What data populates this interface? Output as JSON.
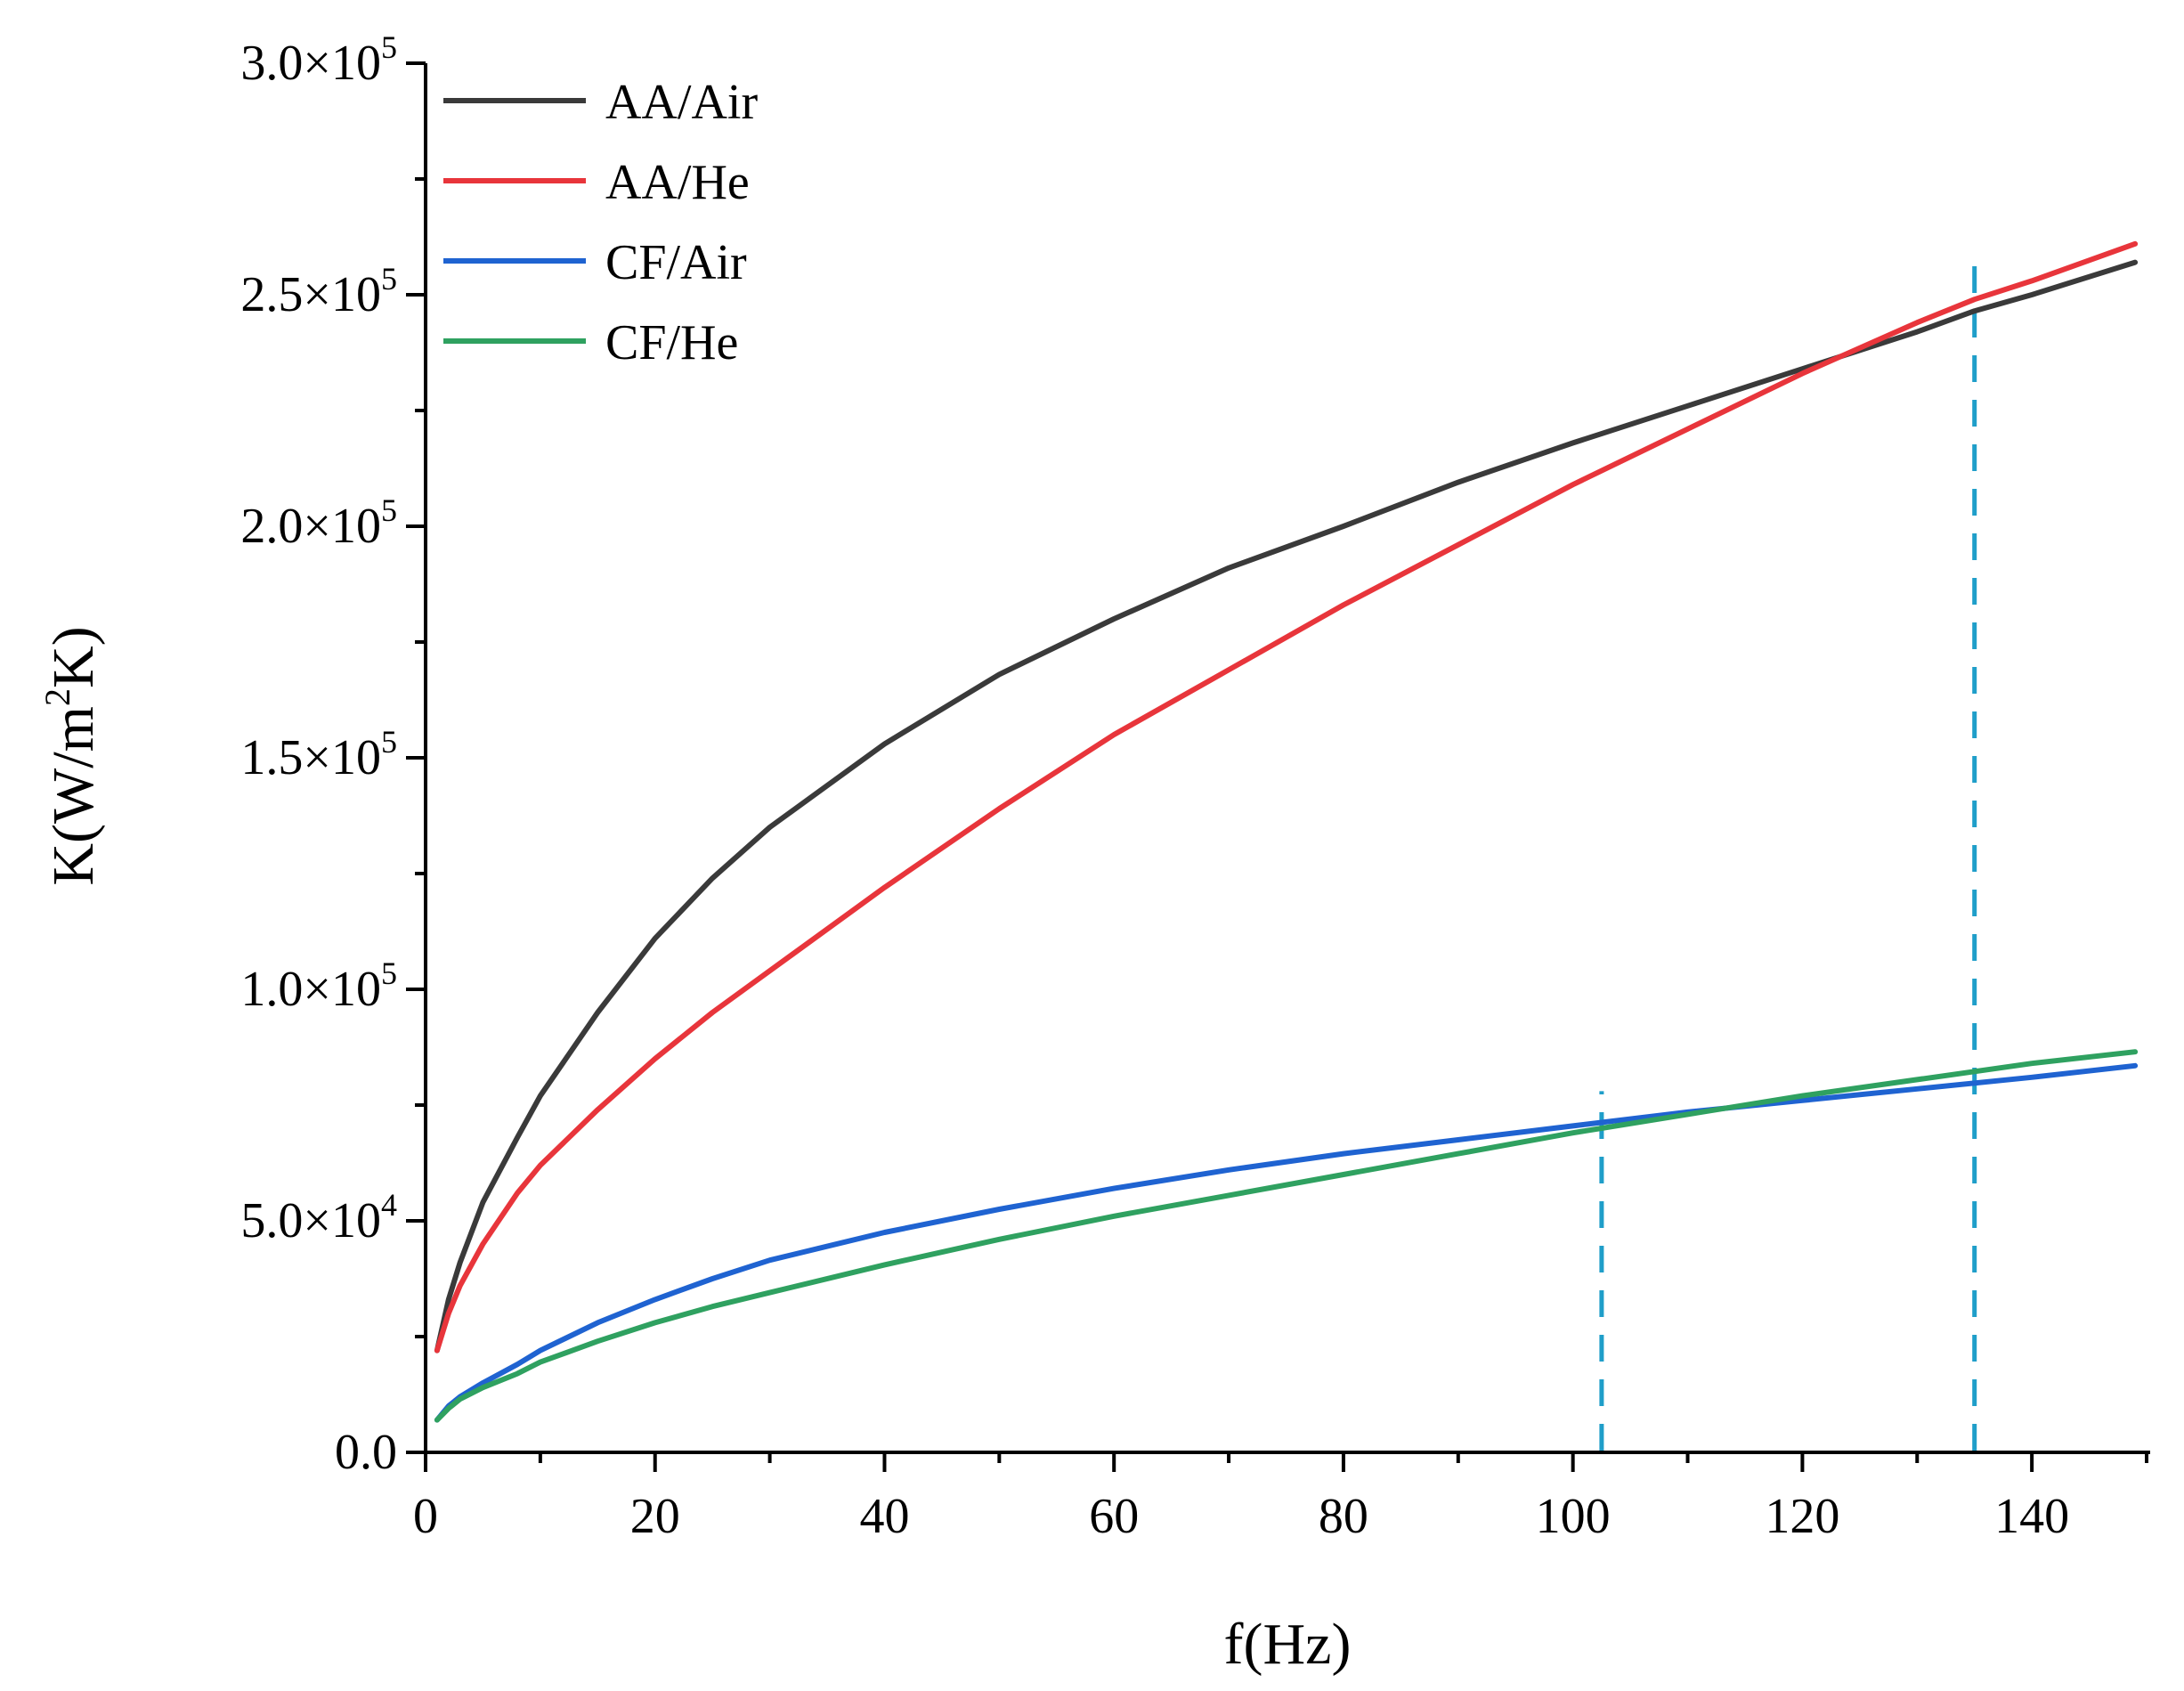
{
  "chart_data": {
    "type": "line",
    "xlabel": "f(Hz)",
    "ylabel": {
      "prefix": "K(W/m",
      "sup": "2",
      "suffix": "K)"
    },
    "xlim": [
      0,
      150
    ],
    "ylim": [
      0,
      300000
    ],
    "x_ticks": [
      0,
      20,
      40,
      60,
      80,
      100,
      120,
      140
    ],
    "x_tick_labels": [
      "0",
      "20",
      "40",
      "60",
      "80",
      "100",
      "120",
      "140"
    ],
    "y_ticks": [
      0,
      50000,
      100000,
      150000,
      200000,
      250000,
      300000
    ],
    "y_tick_labels": [
      {
        "mantissa": "0.0",
        "exp": ""
      },
      {
        "mantissa": "5.0×10",
        "exp": "4"
      },
      {
        "mantissa": "1.0×10",
        "exp": "5"
      },
      {
        "mantissa": "1.5×10",
        "exp": "5"
      },
      {
        "mantissa": "2.0×10",
        "exp": "5"
      },
      {
        "mantissa": "2.5×10",
        "exp": "5"
      },
      {
        "mantissa": "3.0×10",
        "exp": "5"
      }
    ],
    "legend_position": "top-left",
    "series": [
      {
        "name": "AA/Air",
        "color": "#3a3a3a",
        "x": [
          1,
          2,
          3,
          5,
          8,
          10,
          15,
          20,
          25,
          30,
          40,
          50,
          60,
          70,
          80,
          90,
          100,
          110,
          120,
          130,
          135,
          140,
          149
        ],
        "values": [
          22000,
          33000,
          41000,
          54000,
          68000,
          77000,
          95000,
          111000,
          124000,
          135000,
          153000,
          168000,
          180000,
          191000,
          200000,
          209500,
          218000,
          226000,
          234000,
          242000,
          246500,
          250000,
          257000
        ]
      },
      {
        "name": "AA/He",
        "color": "#e8353b",
        "x": [
          1,
          2,
          3,
          5,
          8,
          10,
          15,
          20,
          25,
          30,
          40,
          50,
          60,
          70,
          80,
          90,
          100,
          110,
          120,
          130,
          135,
          140,
          149
        ],
        "values": [
          22000,
          30000,
          36000,
          45000,
          56000,
          62000,
          74000,
          85000,
          95000,
          104000,
          122000,
          139000,
          155000,
          169000,
          183000,
          196000,
          209000,
          221000,
          233000,
          244000,
          249000,
          253000,
          261000
        ]
      },
      {
        "name": "CF/Air",
        "color": "#1f63d1",
        "x": [
          1,
          2,
          3,
          5,
          8,
          10,
          15,
          20,
          25,
          30,
          40,
          50,
          60,
          70,
          80,
          90,
          100,
          110,
          120,
          130,
          140,
          149
        ],
        "values": [
          7000,
          10000,
          12000,
          15000,
          19000,
          22000,
          28000,
          33000,
          37500,
          41500,
          47500,
          52500,
          57000,
          61000,
          64500,
          67500,
          70500,
          73500,
          76000,
          78500,
          81000,
          83500
        ]
      },
      {
        "name": "CF/He",
        "color": "#2fa160",
        "x": [
          1,
          2,
          3,
          5,
          8,
          10,
          15,
          20,
          25,
          30,
          40,
          50,
          60,
          70,
          80,
          90,
          100,
          110,
          120,
          130,
          140,
          149
        ],
        "values": [
          7000,
          9500,
          11500,
          14000,
          17000,
          19500,
          24000,
          28000,
          31500,
          34500,
          40500,
          46000,
          51000,
          55500,
          60000,
          64500,
          69000,
          73000,
          77000,
          80500,
          84000,
          86500
        ]
      }
    ],
    "reference_lines": [
      {
        "x": 102.5,
        "y_range": [
          0,
          78000
        ],
        "color": "#1f9ec9",
        "style": "dashed"
      },
      {
        "x": 135,
        "y_range": [
          0,
          260000
        ],
        "color": "#1f9ec9",
        "style": "dashed"
      }
    ]
  }
}
